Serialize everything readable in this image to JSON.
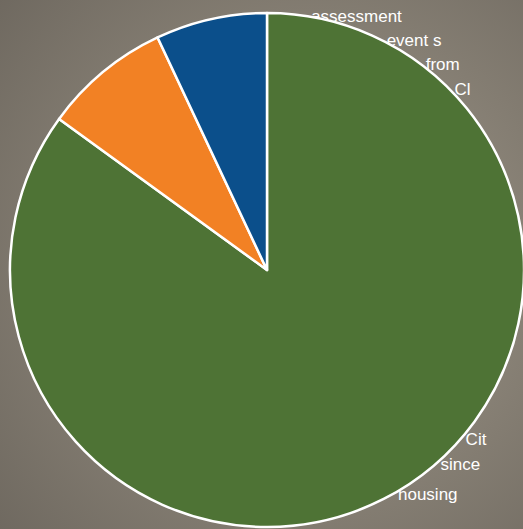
{
  "chart_data": {
    "type": "pie",
    "values": [
      85,
      8,
      7
    ],
    "colors": [
      "#4e7335",
      "#f28124",
      "#0b4f8b"
    ],
    "annotations": [
      "assessment",
      "event s",
      "from",
      "Cl",
      "Cit",
      "since",
      "housing"
    ]
  }
}
